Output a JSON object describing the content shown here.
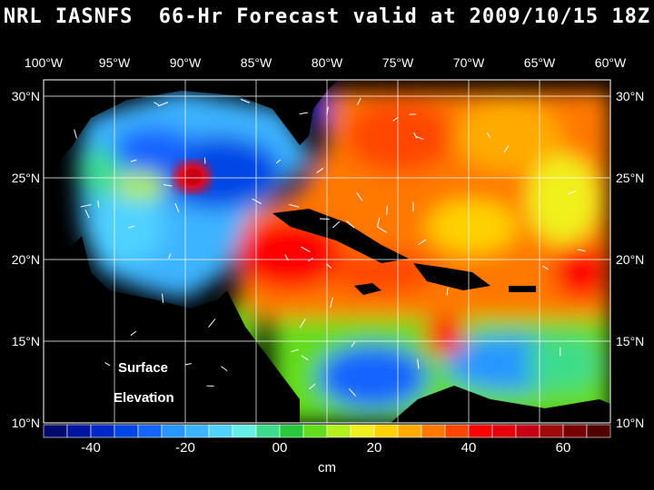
{
  "title": "NRL IASNFS  66-Hr Forecast valid at 2009/10/15 18Z",
  "map": {
    "lon_range": [
      -100,
      -60
    ],
    "lat_range": [
      10,
      31
    ],
    "lon_labels": [
      "100°W",
      "95°W",
      "90°W",
      "85°W",
      "80°W",
      "75°W",
      "70°W",
      "65°W",
      "60°W"
    ],
    "lat_labels": [
      "30°N",
      "25°N",
      "20°N",
      "15°N",
      "10°N"
    ],
    "overlay_text": [
      "Surface",
      "Elevation"
    ]
  },
  "colorbar": {
    "unit": "cm",
    "tick_labels": [
      "-40",
      "-20",
      "00",
      "20",
      "40",
      "60"
    ],
    "colors": [
      "#000a6e",
      "#0014a0",
      "#0028c8",
      "#0046e6",
      "#1464ff",
      "#2896ff",
      "#3cb4ff",
      "#50d2ff",
      "#64f0e6",
      "#3cdc8c",
      "#28c83c",
      "#64dc1e",
      "#b4f01e",
      "#f0f01e",
      "#ffd200",
      "#ffaa00",
      "#ff7800",
      "#ff4600",
      "#ff0000",
      "#e6000a",
      "#c80014",
      "#a00a0a",
      "#780000",
      "#500000"
    ]
  }
}
